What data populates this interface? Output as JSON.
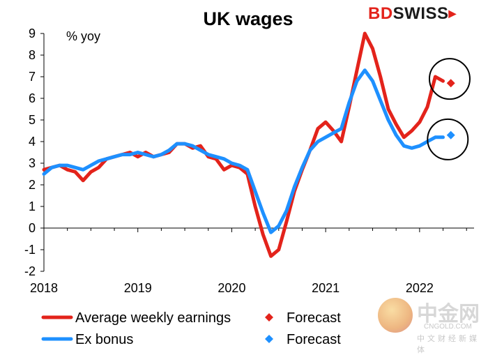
{
  "brand": {
    "part1": "BD",
    "part2": "SWISS",
    "arrow_icon": "chevron-right-icon"
  },
  "watermark": {
    "name": "中金网",
    "url": "CNGOLD.COM",
    "sub": "中文财经新媒体"
  },
  "colors": {
    "earnings": "#e3231b",
    "exbonus": "#1e90ff",
    "axis": "#000000"
  },
  "chart_data": {
    "type": "line",
    "title": "UK wages",
    "unit_label": "% yoy",
    "xlabel": "",
    "ylabel": "",
    "ylim": [
      -2,
      9
    ],
    "yticks": [
      -2,
      -1,
      0,
      1,
      2,
      3,
      4,
      5,
      6,
      7,
      8,
      9
    ],
    "xlim": [
      2018.0,
      2022.58
    ],
    "xticks": [
      {
        "value": 2018,
        "label": "2018"
      },
      {
        "value": 2019,
        "label": "2019"
      },
      {
        "value": 2020,
        "label": "2020"
      },
      {
        "value": 2021,
        "label": "2021"
      },
      {
        "value": 2022,
        "label": "2022"
      }
    ],
    "series": [
      {
        "name": "Average weekly earnings",
        "color": "#e3231b",
        "x": [
          2018.0,
          2018.083,
          2018.167,
          2018.25,
          2018.333,
          2018.417,
          2018.5,
          2018.583,
          2018.667,
          2018.75,
          2018.833,
          2018.917,
          2019.0,
          2019.083,
          2019.167,
          2019.25,
          2019.333,
          2019.417,
          2019.5,
          2019.583,
          2019.667,
          2019.75,
          2019.833,
          2019.917,
          2020.0,
          2020.083,
          2020.167,
          2020.25,
          2020.333,
          2020.417,
          2020.5,
          2020.583,
          2020.667,
          2020.75,
          2020.833,
          2020.917,
          2021.0,
          2021.083,
          2021.167,
          2021.25,
          2021.333,
          2021.417,
          2021.5,
          2021.583,
          2021.667,
          2021.75,
          2021.833,
          2021.917,
          2022.0,
          2022.083,
          2022.167,
          2022.25
        ],
        "values": [
          2.7,
          2.8,
          2.9,
          2.7,
          2.6,
          2.2,
          2.6,
          2.8,
          3.2,
          3.3,
          3.4,
          3.5,
          3.3,
          3.5,
          3.3,
          3.4,
          3.5,
          3.9,
          3.9,
          3.7,
          3.8,
          3.3,
          3.2,
          2.7,
          2.9,
          2.8,
          2.5,
          1.0,
          -0.3,
          -1.3,
          -1.0,
          0.3,
          1.7,
          2.7,
          3.6,
          4.6,
          4.9,
          4.5,
          4.0,
          5.6,
          7.3,
          9.0,
          8.3,
          7.0,
          5.5,
          4.8,
          4.2,
          4.5,
          4.9,
          5.6,
          7.0,
          6.8
        ]
      },
      {
        "name": "Ex bonus",
        "color": "#1e90ff",
        "x": [
          2018.0,
          2018.083,
          2018.167,
          2018.25,
          2018.333,
          2018.417,
          2018.5,
          2018.583,
          2018.667,
          2018.75,
          2018.833,
          2018.917,
          2019.0,
          2019.083,
          2019.167,
          2019.25,
          2019.333,
          2019.417,
          2019.5,
          2019.583,
          2019.667,
          2019.75,
          2019.833,
          2019.917,
          2020.0,
          2020.083,
          2020.167,
          2020.25,
          2020.333,
          2020.417,
          2020.5,
          2020.583,
          2020.667,
          2020.75,
          2020.833,
          2020.917,
          2021.0,
          2021.083,
          2021.167,
          2021.25,
          2021.333,
          2021.417,
          2021.5,
          2021.583,
          2021.667,
          2021.75,
          2021.833,
          2021.917,
          2022.0,
          2022.083,
          2022.167,
          2022.25
        ],
        "values": [
          2.5,
          2.8,
          2.9,
          2.9,
          2.8,
          2.7,
          2.9,
          3.1,
          3.2,
          3.3,
          3.4,
          3.4,
          3.5,
          3.4,
          3.3,
          3.4,
          3.6,
          3.9,
          3.9,
          3.8,
          3.6,
          3.4,
          3.3,
          3.2,
          3.0,
          2.9,
          2.7,
          1.7,
          0.7,
          -0.2,
          0.1,
          0.8,
          1.9,
          2.8,
          3.6,
          4.0,
          4.2,
          4.4,
          4.6,
          5.8,
          6.8,
          7.3,
          6.8,
          5.9,
          5.0,
          4.3,
          3.8,
          3.7,
          3.8,
          4.0,
          4.2,
          4.2
        ]
      },
      {
        "name": "Forecast",
        "color": "#e3231b",
        "marker": "diamond",
        "x": [
          2022.333
        ],
        "values": [
          6.7
        ]
      },
      {
        "name": "Forecast",
        "color": "#1e90ff",
        "marker": "diamond",
        "x": [
          2022.333
        ],
        "values": [
          4.3
        ]
      }
    ],
    "highlight_circles": [
      {
        "series": "Average weekly earnings forecast",
        "x": 2022.32,
        "y": 6.9
      },
      {
        "series": "Ex bonus forecast",
        "x": 2022.3,
        "y": 4.1
      }
    ],
    "legend": {
      "placement": "bottom",
      "items": [
        {
          "label": "Average weekly earnings",
          "kind": "line",
          "color": "#e3231b"
        },
        {
          "label": "Forecast",
          "kind": "diamond",
          "color": "#e3231b"
        },
        {
          "label": "Ex bonus",
          "kind": "line",
          "color": "#1e90ff"
        },
        {
          "label": "Forecast",
          "kind": "diamond",
          "color": "#1e90ff"
        }
      ]
    },
    "grid": false
  }
}
